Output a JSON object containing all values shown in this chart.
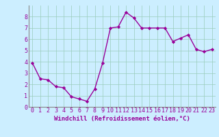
{
  "x": [
    0,
    1,
    2,
    3,
    4,
    5,
    6,
    7,
    8,
    9,
    10,
    11,
    12,
    13,
    14,
    15,
    16,
    17,
    18,
    19,
    20,
    21,
    22,
    23
  ],
  "y": [
    3.9,
    2.5,
    2.4,
    1.8,
    1.7,
    0.9,
    0.7,
    0.5,
    1.6,
    3.9,
    7.0,
    7.1,
    8.4,
    7.9,
    7.0,
    7.0,
    7.0,
    7.0,
    5.8,
    6.1,
    6.4,
    5.1,
    4.9,
    5.1
  ],
  "line_color": "#990099",
  "marker": "D",
  "marker_size": 2.2,
  "bg_color": "#cceeff",
  "grid_color": "#99ccbb",
  "xlabel": "Windchill (Refroidissement éolien,°C)",
  "xlabel_color": "#990099",
  "xlabel_fontsize": 6.5,
  "tick_color": "#990099",
  "tick_fontsize": 6.0,
  "xlim": [
    -0.5,
    23.5
  ],
  "ylim": [
    0,
    9
  ],
  "yticks": [
    0,
    1,
    2,
    3,
    4,
    5,
    6,
    7,
    8
  ],
  "xticks": [
    0,
    1,
    2,
    3,
    4,
    5,
    6,
    7,
    8,
    9,
    10,
    11,
    12,
    13,
    14,
    15,
    16,
    17,
    18,
    19,
    20,
    21,
    22,
    23
  ],
  "spine_color": "#888888",
  "separator_color": "#888888"
}
